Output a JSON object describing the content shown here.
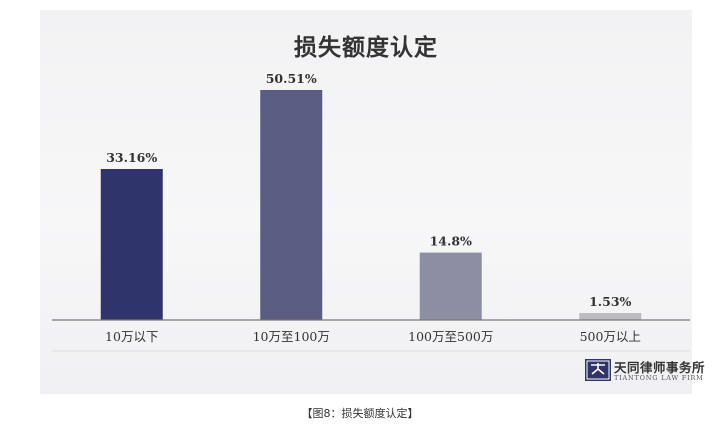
{
  "chart_data": {
    "type": "bar",
    "title": "损失额度认定",
    "categories": [
      "10万以下",
      "10万至100万",
      "100万至500万",
      "500万以上"
    ],
    "values": [
      33.16,
      50.51,
      14.8,
      1.53
    ],
    "value_labels": [
      "33.16%",
      "50.51%",
      "14.8%",
      "1.53%"
    ],
    "colors": [
      "#2f356b",
      "#5a5c82",
      "#8c8ea3",
      "#bcbcc0"
    ],
    "ylim": [
      0,
      50.51
    ],
    "grid": false,
    "legend": "none"
  },
  "firm": {
    "name_cn": "天同律师事务所",
    "name_en": "TIANTONG LAW FIRM"
  },
  "caption": "【图8：损失额度认定】"
}
